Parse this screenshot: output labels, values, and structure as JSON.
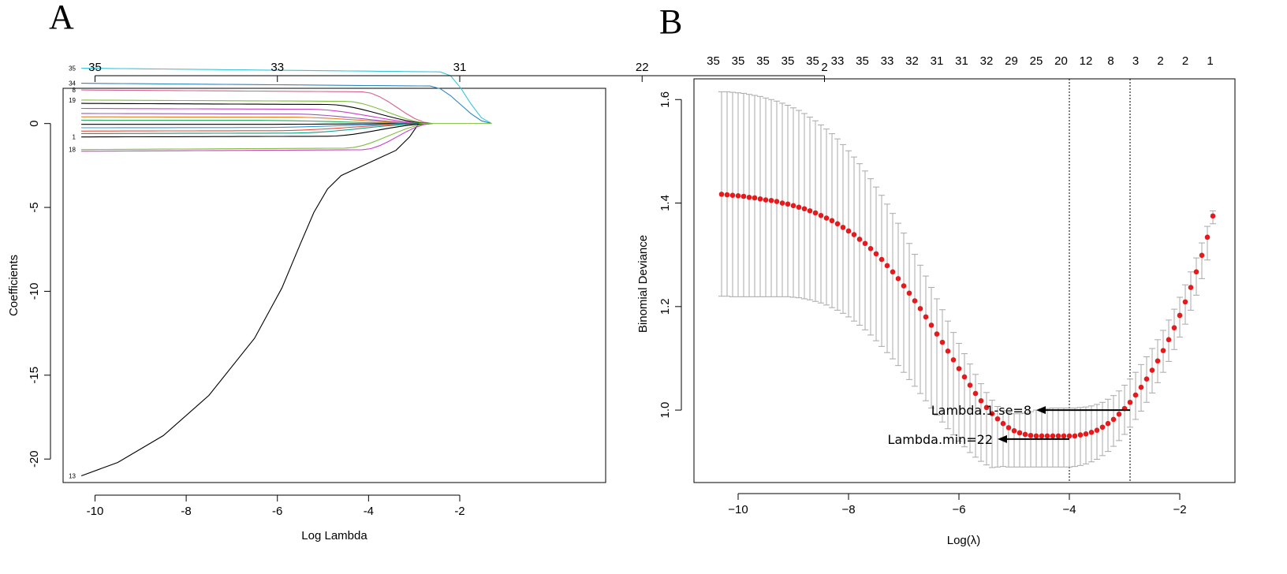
{
  "chart_data": [
    {
      "panel": "A",
      "type": "line",
      "title": "",
      "xlabel": "Log Lambda",
      "ylabel": "Coefficients",
      "xlim": [
        -10.7,
        1.2
      ],
      "ylim": [
        -21.4,
        2.1
      ],
      "x_ticks": [
        -10,
        -8,
        -6,
        -4,
        -2
      ],
      "x_tick_labels": [
        "-10",
        "-8",
        "-6",
        "-4",
        "-2"
      ],
      "y_ticks": [
        -20,
        -15,
        -10,
        -5,
        0
      ],
      "y_tick_labels": [
        "-20",
        "-15",
        "-10",
        "-5",
        "0"
      ],
      "top_ticks": [
        -10,
        -6,
        -2,
        2,
        6
      ],
      "top_tick_labels": [
        "35",
        "33",
        "31",
        "22",
        "2"
      ],
      "x_start": -10.3,
      "x_end": -2.6,
      "series": [
        {
          "name": "13",
          "color": "#000000",
          "zero_at": -2.9,
          "points": [
            [
              -10.3,
              -21.0
            ],
            [
              -9.5,
              -20.2
            ],
            [
              -8.5,
              -18.6
            ],
            [
              -7.5,
              -16.2
            ],
            [
              -6.5,
              -12.8
            ],
            [
              -5.9,
              -9.8
            ],
            [
              -5.5,
              -7.2
            ],
            [
              -5.2,
              -5.3
            ],
            [
              -4.9,
              -3.9
            ],
            [
              -4.6,
              -3.1
            ],
            [
              -4.2,
              -2.6
            ],
            [
              -3.8,
              -2.1
            ],
            [
              -3.4,
              -1.6
            ],
            [
              -3.1,
              -0.8
            ],
            [
              -2.9,
              0.0
            ]
          ]
        },
        {
          "name": "35",
          "color": "#36c6dc",
          "start": 3.3,
          "zero_at": -1.3,
          "keep": 0.88,
          "drop": 0.45
        },
        {
          "name": "34",
          "color": "#2e86c1",
          "start": 2.4,
          "zero_at": -1.3,
          "keep": 0.85,
          "drop": 0.45
        },
        {
          "name": "8",
          "color": "#d95f8f",
          "start": 2.0,
          "zero_at": -2.6,
          "keep": 0.8,
          "drop": 0.35
        },
        {
          "name": "19",
          "color": "#7fbf3f",
          "start": 1.4,
          "zero_at": -2.6,
          "keep": 0.75,
          "drop": 0.35
        },
        {
          "name": "",
          "color": "#000000",
          "start": 1.2,
          "zero_at": -2.6,
          "keep": 0.7,
          "drop": 0.35
        },
        {
          "name": "",
          "color": "#cc3fc8",
          "start": 0.9,
          "zero_at": -2.6,
          "keep": 0.65,
          "drop": 0.35
        },
        {
          "name": "",
          "color": "#9b59b6",
          "start": 0.6,
          "zero_at": -2.6,
          "keep": 0.6,
          "drop": 0.35
        },
        {
          "name": "",
          "color": "#e67e22",
          "start": 0.4,
          "zero_at": -2.6,
          "keep": 0.6,
          "drop": 0.35
        },
        {
          "name": "",
          "color": "#27ae60",
          "start": 0.2,
          "zero_at": -2.6,
          "keep": 0.5,
          "drop": 0.35
        },
        {
          "name": "",
          "color": "#000000",
          "start": -0.05,
          "zero_at": -2.6,
          "keep": 0.5,
          "drop": 0.35
        },
        {
          "name": "",
          "color": "#3498db",
          "start": -0.25,
          "zero_at": -2.6,
          "keep": 0.5,
          "drop": 0.35
        },
        {
          "name": "",
          "color": "#e74c3c",
          "start": -0.45,
          "zero_at": -2.6,
          "keep": 0.55,
          "drop": 0.35
        },
        {
          "name": "",
          "color": "#16a085",
          "start": -0.6,
          "zero_at": -2.6,
          "keep": 0.6,
          "drop": 0.35
        },
        {
          "name": "1",
          "color": "#000000",
          "start": -0.8,
          "zero_at": -2.6,
          "keep": 0.7,
          "drop": 0.35
        },
        {
          "name": "18",
          "color": "#7fbf3f",
          "start": -1.55,
          "zero_at": -2.6,
          "keep": 0.75,
          "drop": 0.35
        },
        {
          "name": "",
          "color": "#cc3fc8",
          "start": -1.65,
          "zero_at": -2.6,
          "keep": 0.8,
          "drop": 0.35
        }
      ]
    },
    {
      "panel": "B",
      "type": "scatter",
      "title": "",
      "xlabel": "Log(λ)",
      "ylabel": "Binomial Deviance",
      "xlim": [
        -10.8,
        -1.0
      ],
      "ylim": [
        0.86,
        1.64
      ],
      "x_ticks": [
        -10,
        -8,
        -6,
        -4,
        -2
      ],
      "x_tick_labels": [
        "−10",
        "−8",
        "−6",
        "−4",
        "−2"
      ],
      "y_ticks": [
        1.0,
        1.2,
        1.4,
        1.6
      ],
      "y_tick_labels": [
        "1.0",
        "1.2",
        "1.4",
        "1.6"
      ],
      "top_tick_labels": [
        "35",
        "35",
        "35",
        "35",
        "35",
        "33",
        "35",
        "33",
        "32",
        "31",
        "31",
        "32",
        "29",
        "25",
        "20",
        "12",
        "8",
        "3",
        "2",
        "2",
        "1"
      ],
      "log_lambda": [
        -10.3,
        -10.2,
        -10.1,
        -10.0,
        -9.9,
        -9.8,
        -9.7,
        -9.6,
        -9.5,
        -9.4,
        -9.3,
        -9.2,
        -9.1,
        -9.0,
        -8.9,
        -8.8,
        -8.7,
        -8.6,
        -8.5,
        -8.4,
        -8.3,
        -8.2,
        -8.1,
        -8.0,
        -7.9,
        -7.8,
        -7.7,
        -7.6,
        -7.5,
        -7.4,
        -7.3,
        -7.2,
        -7.1,
        -7.0,
        -6.9,
        -6.8,
        -6.7,
        -6.6,
        -6.5,
        -6.4,
        -6.3,
        -6.2,
        -6.1,
        -6.0,
        -5.9,
        -5.8,
        -5.7,
        -5.6,
        -5.5,
        -5.4,
        -5.3,
        -5.2,
        -5.1,
        -5.0,
        -4.9,
        -4.8,
        -4.7,
        -4.6,
        -4.5,
        -4.4,
        -4.3,
        -4.2,
        -4.1,
        -4.0,
        -3.9,
        -3.8,
        -3.7,
        -3.6,
        -3.5,
        -3.4,
        -3.3,
        -3.2,
        -3.1,
        -3.0,
        -2.9,
        -2.8,
        -2.7,
        -2.6,
        -2.5,
        -2.4,
        -2.3,
        -2.2,
        -2.1,
        -2.0,
        -1.9,
        -1.8,
        -1.7,
        -1.6,
        -1.5,
        -1.4
      ],
      "deviance": [
        1.417,
        1.416,
        1.415,
        1.414,
        1.413,
        1.411,
        1.41,
        1.408,
        1.406,
        1.405,
        1.403,
        1.4,
        1.398,
        1.395,
        1.392,
        1.389,
        1.385,
        1.381,
        1.376,
        1.371,
        1.366,
        1.36,
        1.353,
        1.346,
        1.339,
        1.33,
        1.322,
        1.312,
        1.302,
        1.291,
        1.279,
        1.267,
        1.254,
        1.24,
        1.226,
        1.211,
        1.196,
        1.18,
        1.164,
        1.147,
        1.131,
        1.114,
        1.097,
        1.08,
        1.064,
        1.048,
        1.032,
        1.018,
        1.005,
        0.993,
        0.983,
        0.974,
        0.966,
        0.96,
        0.956,
        0.953,
        0.951,
        0.95,
        0.95,
        0.95,
        0.95,
        0.95,
        0.95,
        0.95,
        0.95,
        0.952,
        0.954,
        0.957,
        0.961,
        0.967,
        0.974,
        0.982,
        0.992,
        1.003,
        1.015,
        1.029,
        1.044,
        1.06,
        1.077,
        1.095,
        1.115,
        1.136,
        1.159,
        1.183,
        1.209,
        1.237,
        1.267,
        1.299,
        1.334,
        1.375
      ],
      "upper": [
        1.615,
        1.615,
        1.614,
        1.613,
        1.612,
        1.61,
        1.608,
        1.606,
        1.603,
        1.6,
        1.597,
        1.593,
        1.589,
        1.584,
        1.579,
        1.573,
        1.566,
        1.559,
        1.551,
        1.543,
        1.534,
        1.524,
        1.513,
        1.501,
        1.489,
        1.476,
        1.462,
        1.447,
        1.431,
        1.415,
        1.398,
        1.38,
        1.361,
        1.342,
        1.322,
        1.301,
        1.28,
        1.259,
        1.237,
        1.215,
        1.194,
        1.172,
        1.15,
        1.129,
        1.109,
        1.089,
        1.069,
        1.051,
        1.034,
        1.019,
        1.007,
        0.999,
        0.995,
        0.993,
        0.993,
        0.994,
        0.997,
        1.0,
        1.002,
        1.003,
        1.004,
        1.004,
        1.004,
        1.004,
        1.004,
        1.005,
        1.006,
        1.008,
        1.011,
        1.015,
        1.021,
        1.028,
        1.037,
        1.048,
        1.06,
        1.073,
        1.088,
        1.103,
        1.119,
        1.136,
        1.154,
        1.174,
        1.195,
        1.218,
        1.242,
        1.267,
        1.294,
        1.323,
        1.355,
        1.385
      ],
      "lower": [
        1.22,
        1.22,
        1.219,
        1.219,
        1.219,
        1.219,
        1.219,
        1.219,
        1.219,
        1.219,
        1.219,
        1.219,
        1.219,
        1.218,
        1.217,
        1.215,
        1.213,
        1.21,
        1.207,
        1.203,
        1.198,
        1.193,
        1.187,
        1.18,
        1.172,
        1.164,
        1.155,
        1.145,
        1.134,
        1.123,
        1.111,
        1.099,
        1.086,
        1.073,
        1.059,
        1.046,
        1.032,
        1.018,
        1.004,
        0.99,
        0.977,
        0.964,
        0.952,
        0.94,
        0.929,
        0.918,
        0.909,
        0.901,
        0.894,
        0.889,
        0.89,
        0.891,
        0.89,
        0.89,
        0.89,
        0.89,
        0.89,
        0.89,
        0.89,
        0.89,
        0.89,
        0.89,
        0.89,
        0.89,
        0.891,
        0.893,
        0.896,
        0.9,
        0.905,
        0.912,
        0.92,
        0.93,
        0.941,
        0.953,
        0.967,
        0.982,
        0.998,
        1.015,
        1.033,
        1.053,
        1.073,
        1.094,
        1.117,
        1.141,
        1.166,
        1.193,
        1.222,
        1.254,
        1.29,
        1.36
      ],
      "vlines": [
        -4.0,
        -2.9
      ],
      "annotations": {
        "lambda_1se": "Lambda.1-se=8",
        "lambda_min": "Lambda.min=22"
      },
      "colors": {
        "points": "#e41a1c",
        "errorbars": "#a9a9a9"
      }
    }
  ],
  "panels": {
    "a_label": "A",
    "b_label": "B"
  }
}
